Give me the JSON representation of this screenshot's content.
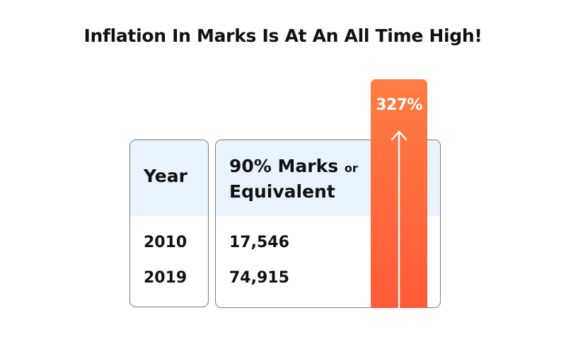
{
  "title": "Inflation In Marks Is At An All Time High!",
  "year_column": {
    "header": "Year",
    "rows": [
      "2010",
      "2019"
    ]
  },
  "marks_column": {
    "header_main": "90% Marks",
    "header_or": "or",
    "header_second": "Equivalent",
    "rows": [
      "17,546",
      "74,915"
    ]
  },
  "increase": {
    "label": "327%",
    "arrow_icon": "up-arrow-icon"
  },
  "colors": {
    "header_background": "#e8f3fd",
    "bar_top": "#ff7d42",
    "bar_bottom": "#ff5a3a",
    "border": "#7d7d7d"
  }
}
